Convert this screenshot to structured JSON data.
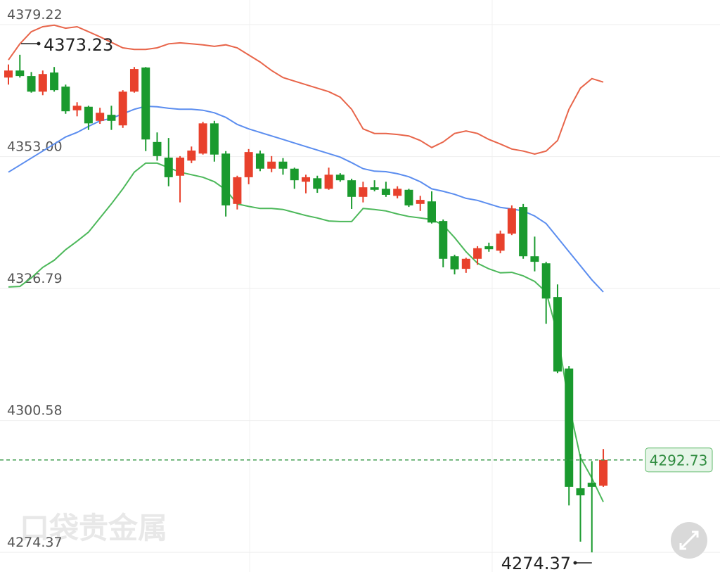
{
  "watermark": "口袋贵金属",
  "chart_data": {
    "type": "candlestick",
    "ylim": [
      4270.47,
      4384.11
    ],
    "yticks": [
      4379.22,
      {
        "value": 4353,
        "label": "4353.00"
      },
      4326.79,
      4300.58,
      4274.37
    ],
    "grid": true,
    "up_color": "#e8412c",
    "down_color": "#1a9a2e",
    "open": [
      4368.7,
      4370.1,
      4369.0,
      4365.9,
      4369.7,
      4366.9,
      4362.2,
      4362.9,
      4360.1,
      4361.3,
      4359.2,
      4365.9,
      4370.7,
      4355.9,
      4352.8,
      4349.2,
      4352.2,
      4353.6,
      4359.6,
      4353.6,
      4343.6,
      4348.9,
      4353.6,
      4350.6,
      4352.0,
      4350.6,
      4348.0,
      4348.7,
      4346.6,
      4349.4,
      4348.3,
      4345.0,
      4346.9,
      4346.6,
      4345.2,
      4346.4,
      4343.6,
      4344.1,
      4340.2,
      4333.2,
      4330.7,
      4332.7,
      4335.2,
      4334.3,
      4337.7,
      4343.0,
      4333.2,
      4331.8,
      4325.1,
      4310.9,
      4287.1,
      4288.2,
      4287.6
    ],
    "high": [
      4371.3,
      4373.23,
      4369.8,
      4370.1,
      4370.8,
      4367.3,
      4363.8,
      4363.1,
      4362.7,
      4363.1,
      4366.2,
      4370.8,
      4370.8,
      4357.8,
      4356.7,
      4353.1,
      4355.0,
      4359.9,
      4360.1,
      4354.1,
      4349.2,
      4354.5,
      4354.2,
      4353.1,
      4352.7,
      4350.8,
      4349.4,
      4349.2,
      4350.8,
      4349.7,
      4348.6,
      4348.0,
      4348.3,
      4348.0,
      4347.1,
      4346.6,
      4345.2,
      4346.1,
      4340.5,
      4333.5,
      4332.9,
      4335.2,
      4335.9,
      4338.3,
      4343.3,
      4343.6,
      4337.1,
      4332.1,
      4327.6,
      4311.4,
      4293.9,
      4292.5,
      4294.9
    ],
    "low": [
      4367.3,
      4368.7,
      4365.7,
      4365.2,
      4365.9,
      4361.5,
      4361.0,
      4358.3,
      4359.5,
      4358.3,
      4358.7,
      4365.7,
      4354.1,
      4352.2,
      4347.1,
      4343.9,
      4351.7,
      4353.4,
      4352.0,
      4341.1,
      4342.5,
      4347.5,
      4350.1,
      4349.9,
      4349.4,
      4346.6,
      4345.7,
      4345.8,
      4346.4,
      4348.0,
      4342.6,
      4343.9,
      4346.1,
      4345.0,
      4344.7,
      4343.0,
      4342.2,
      4339.7,
      4331.0,
      4329.6,
      4329.9,
      4331.5,
      4334.1,
      4333.8,
      4337.4,
      4332.7,
      4330.2,
      4319.8,
      4310.0,
      4283.7,
      4276.5,
      4274.37,
      4287.4
    ],
    "close": [
      4370.1,
      4369.0,
      4365.9,
      4369.4,
      4366.2,
      4362.0,
      4363.1,
      4359.6,
      4361.7,
      4360.1,
      4365.9,
      4370.4,
      4356.4,
      4353.1,
      4348.9,
      4352.8,
      4354.2,
      4359.6,
      4353.4,
      4343.3,
      4348.9,
      4353.9,
      4350.6,
      4352.0,
      4350.6,
      4348.3,
      4348.9,
      4346.6,
      4349.4,
      4348.3,
      4345.0,
      4346.9,
      4346.4,
      4345.4,
      4346.6,
      4343.3,
      4344.4,
      4339.9,
      4332.7,
      4330.6,
      4332.7,
      4334.8,
      4334.6,
      4337.7,
      4342.7,
      4333.2,
      4332.1,
      4324.8,
      4310.3,
      4287.4,
      4285.7,
      4287.4,
      4292.73
    ],
    "bands": {
      "upper": {
        "color": "#e8654a",
        "values": [
          4372.2,
          4375.4,
          4377.8,
          4378.8,
          4379.1,
          4378.5,
          4378.8,
          4377.8,
          4376.8,
          4375.7,
          4374.6,
          4374.3,
          4374.3,
          4374.6,
          4375.4,
          4375.6,
          4375.4,
          4375.2,
          4374.9,
          4375.2,
          4374.6,
          4373.2,
          4371.8,
          4370.1,
          4368.7,
          4368.0,
          4367.3,
          4366.6,
          4365.9,
          4364.8,
          4362.4,
          4358.5,
          4357.6,
          4357.6,
          4357.4,
          4357.1,
          4356.2,
          4354.8,
          4355.9,
          4357.6,
          4358.1,
          4357.6,
          4356.4,
          4355.5,
          4354.5,
          4354.1,
          4353.5,
          4354.1,
          4356.2,
          4362.4,
          4366.6,
          4368.5,
          4367.8
        ]
      },
      "middle": {
        "color": "#5b8def",
        "values": [
          4349.9,
          4351.3,
          4352.7,
          4354.1,
          4355.5,
          4356.9,
          4357.8,
          4359.0,
          4360.1,
          4360.6,
          4361.5,
          4362.4,
          4363.0,
          4362.9,
          4362.6,
          4362.4,
          4362.4,
          4362.2,
          4361.7,
          4360.8,
          4359.4,
          4358.5,
          4357.8,
          4357.1,
          4356.4,
          4355.7,
          4355.0,
          4354.3,
          4353.6,
          4352.9,
          4351.8,
          4350.6,
          4350.1,
          4350.0,
          4349.6,
          4349.0,
          4348.0,
          4346.6,
          4346.1,
          4345.5,
          4344.7,
          4344.3,
          4343.6,
          4342.9,
          4342.6,
          4342.2,
          4341.2,
          4339.7,
          4336.9,
          4334.1,
          4331.3,
          4328.5,
          4326.1
        ]
      },
      "lower": {
        "color": "#4cb85a",
        "values": [
          4327.1,
          4327.2,
          4328.9,
          4331.0,
          4332.4,
          4334.5,
          4336.2,
          4338.0,
          4340.8,
          4343.6,
          4346.6,
          4349.9,
          4351.7,
          4351.7,
          4350.8,
          4349.9,
          4349.4,
          4348.9,
          4348.0,
          4346.4,
          4343.6,
          4343.1,
          4342.7,
          4342.7,
          4342.5,
          4341.9,
          4341.3,
          4340.8,
          4340.2,
          4340.1,
          4340.1,
          4342.7,
          4342.5,
          4342.2,
          4341.6,
          4341.1,
          4340.8,
          4340.5,
          4339.4,
          4336.9,
          4334.1,
          4331.8,
          4330.7,
          4329.9,
          4330.0,
          4329.3,
          4328.2,
          4326.1,
          4317.7,
          4303.7,
          4293.2,
          4289.1,
          4284.4
        ]
      }
    }
  }
}
